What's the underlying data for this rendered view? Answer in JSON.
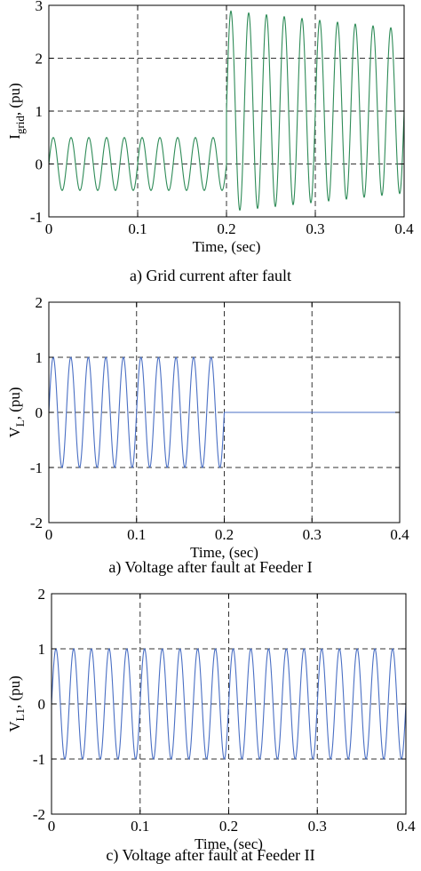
{
  "chart_data": [
    {
      "type": "line",
      "title": "a) Grid current after fault",
      "xlabel": "Time, (sec)",
      "ylabel_main": "I",
      "ylabel_sub": "grid",
      "ylabel_tail": ", (pu)",
      "xlim": [
        0,
        0.4
      ],
      "ylim": [
        -1,
        3
      ],
      "xticks": [
        "0",
        "0.1",
        "0.2",
        "0.3",
        "0.4"
      ],
      "yticks": [
        "-1",
        "0",
        "1",
        "2",
        "3"
      ],
      "grid": true,
      "color": "#2e8b57",
      "frequency_hz": 50,
      "segments": [
        {
          "t_start": 0.0,
          "t_end": 0.2,
          "offset": 0.0,
          "amplitude_start": 0.5,
          "amplitude_end": 0.5
        },
        {
          "t_start": 0.2,
          "t_end": 0.4,
          "offset": 1.0,
          "amplitude_start": 1.9,
          "amplitude_end": 1.55
        }
      ]
    },
    {
      "type": "line",
      "title": "a) Voltage after fault at Feeder I",
      "xlabel": "Time, (sec)",
      "ylabel_main": "V",
      "ylabel_sub": "L",
      "ylabel_tail": ", (pu)",
      "xlim": [
        0,
        0.4
      ],
      "ylim": [
        -2,
        2
      ],
      "xticks": [
        "0",
        "0.1",
        "0.2",
        "0.3",
        "0.4"
      ],
      "yticks": [
        "-2",
        "-1",
        "0",
        "1",
        "2"
      ],
      "grid": true,
      "color": "#4a6fc4",
      "frequency_hz": 50,
      "segments": [
        {
          "t_start": 0.0,
          "t_end": 0.2,
          "offset": 0.0,
          "amplitude_start": 1.0,
          "amplitude_end": 1.0
        },
        {
          "t_start": 0.2,
          "t_end": 0.4,
          "offset": 0.0,
          "amplitude_start": 0.0,
          "amplitude_end": 0.0
        }
      ]
    },
    {
      "type": "line",
      "title": "c) Voltage after fault at Feeder II",
      "xlabel": "Time, (sec)",
      "ylabel_main": "V",
      "ylabel_sub": "L1",
      "ylabel_tail": ", (pu)",
      "xlim": [
        0,
        0.4
      ],
      "ylim": [
        -2,
        2
      ],
      "xticks": [
        "0",
        "0.1",
        "0.2",
        "0.3",
        "0.4"
      ],
      "yticks": [
        "-2",
        "-1",
        "0",
        "1",
        "2"
      ],
      "grid": true,
      "color": "#4a6fc4",
      "frequency_hz": 50,
      "segments": [
        {
          "t_start": 0.0,
          "t_end": 0.4,
          "offset": 0.0,
          "amplitude_start": 1.0,
          "amplitude_end": 1.0
        }
      ]
    }
  ]
}
